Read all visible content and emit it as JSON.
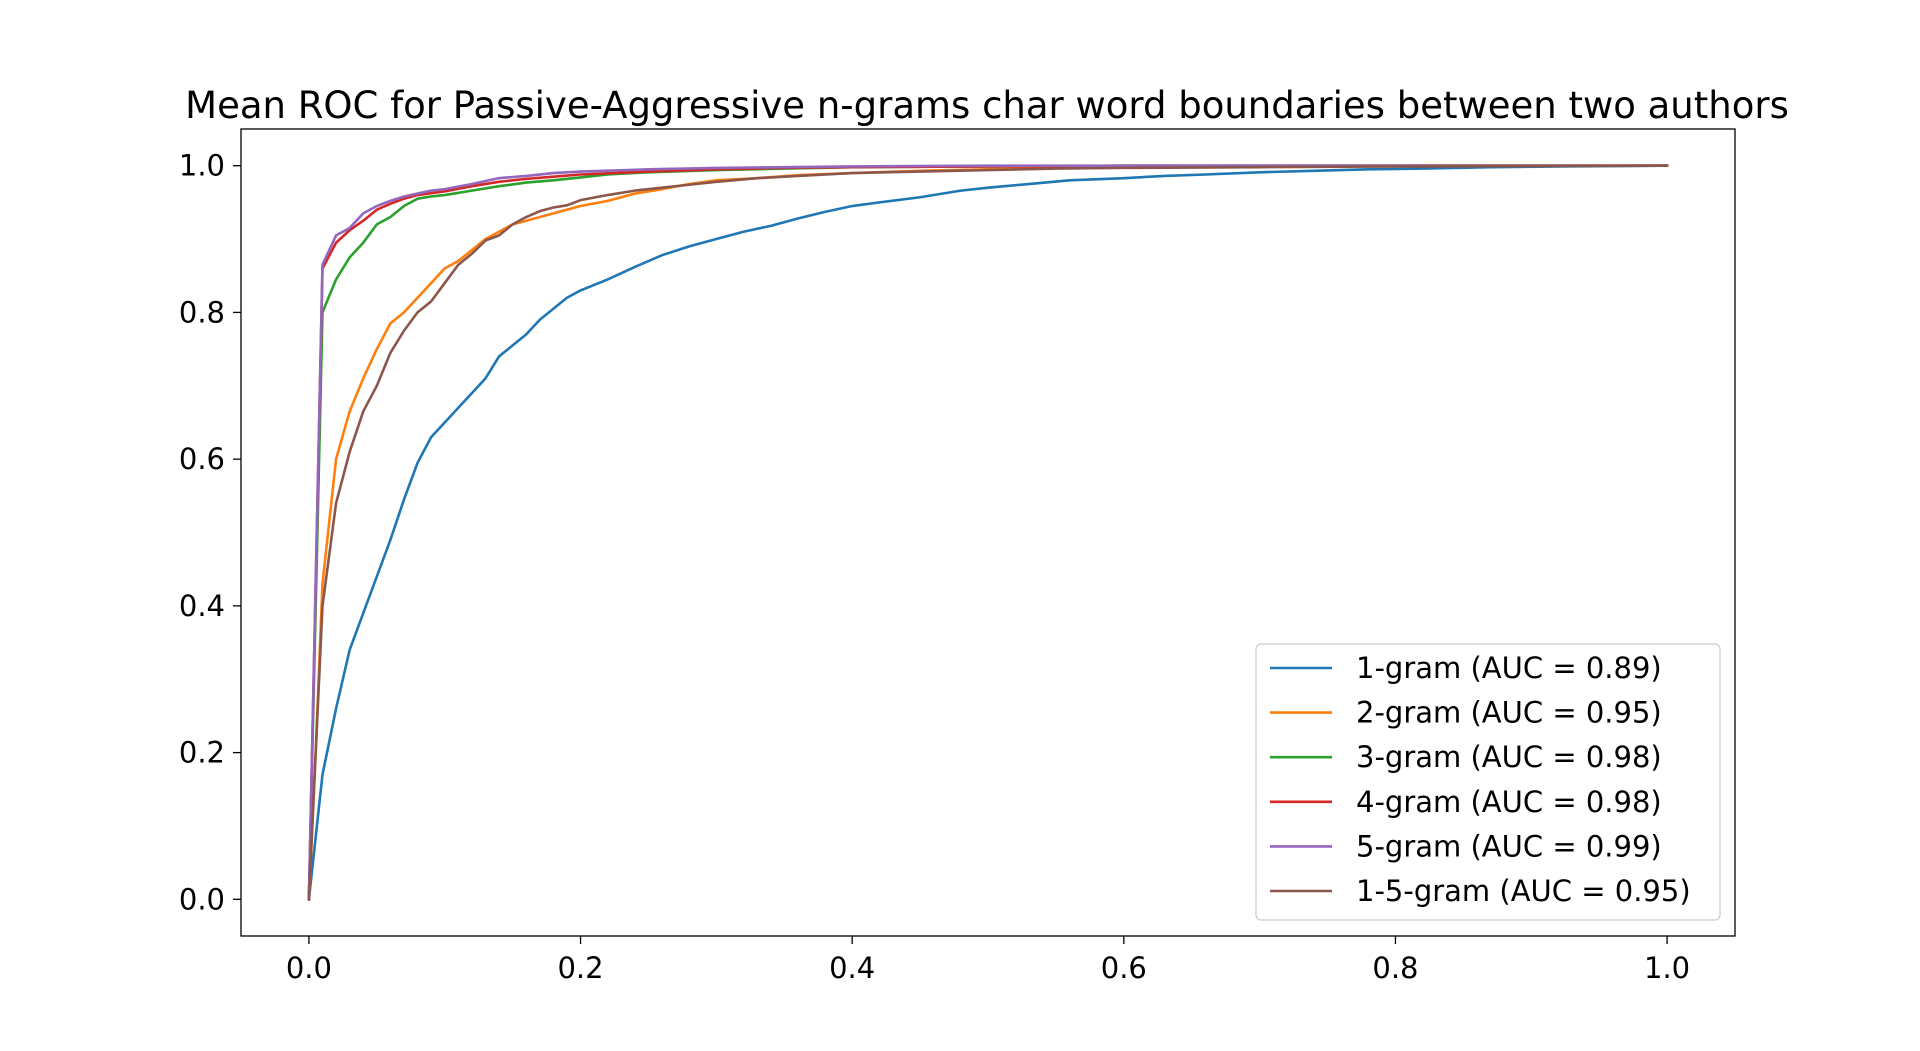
{
  "chart_data": {
    "type": "line",
    "title": "Mean ROC for Passive-Aggressive n-grams char word boundaries between two authors",
    "xlabel": "",
    "ylabel": "",
    "xlim": [
      -0.05,
      1.05
    ],
    "ylim": [
      -0.05,
      1.05
    ],
    "xticks": [
      "0.0",
      "0.2",
      "0.4",
      "0.6",
      "0.8",
      "1.0"
    ],
    "yticks": [
      "0.0",
      "0.2",
      "0.4",
      "0.6",
      "0.8",
      "1.0"
    ],
    "grid": false,
    "legend_position": "lower-right",
    "series": [
      {
        "name": "1-gram (AUC = 0.89)",
        "color": "#1f77b4",
        "points": [
          [
            0,
            0
          ],
          [
            0.01,
            0.17
          ],
          [
            0.02,
            0.26
          ],
          [
            0.03,
            0.34
          ],
          [
            0.04,
            0.39
          ],
          [
            0.05,
            0.44
          ],
          [
            0.06,
            0.49
          ],
          [
            0.07,
            0.545
          ],
          [
            0.08,
            0.595
          ],
          [
            0.09,
            0.63
          ],
          [
            0.1,
            0.65
          ],
          [
            0.11,
            0.67
          ],
          [
            0.12,
            0.69
          ],
          [
            0.13,
            0.71
          ],
          [
            0.14,
            0.74
          ],
          [
            0.15,
            0.755
          ],
          [
            0.16,
            0.77
          ],
          [
            0.17,
            0.79
          ],
          [
            0.18,
            0.805
          ],
          [
            0.19,
            0.82
          ],
          [
            0.2,
            0.83
          ],
          [
            0.22,
            0.845
          ],
          [
            0.24,
            0.862
          ],
          [
            0.26,
            0.878
          ],
          [
            0.28,
            0.89
          ],
          [
            0.3,
            0.9
          ],
          [
            0.32,
            0.91
          ],
          [
            0.34,
            0.918
          ],
          [
            0.36,
            0.928
          ],
          [
            0.38,
            0.937
          ],
          [
            0.4,
            0.945
          ],
          [
            0.42,
            0.95
          ],
          [
            0.45,
            0.957
          ],
          [
            0.48,
            0.966
          ],
          [
            0.5,
            0.97
          ],
          [
            0.53,
            0.975
          ],
          [
            0.56,
            0.98
          ],
          [
            0.6,
            0.983
          ],
          [
            0.63,
            0.986
          ],
          [
            0.66,
            0.988
          ],
          [
            0.7,
            0.991
          ],
          [
            0.74,
            0.993
          ],
          [
            0.78,
            0.995
          ],
          [
            0.82,
            0.996
          ],
          [
            0.87,
            0.998
          ],
          [
            0.92,
            0.999
          ],
          [
            1.0,
            1.0
          ]
        ]
      },
      {
        "name": "2-gram (AUC = 0.95)",
        "color": "#ff7f0e",
        "points": [
          [
            0,
            0
          ],
          [
            0.005,
            0.2
          ],
          [
            0.01,
            0.43
          ],
          [
            0.02,
            0.6
          ],
          [
            0.03,
            0.665
          ],
          [
            0.04,
            0.71
          ],
          [
            0.05,
            0.75
          ],
          [
            0.06,
            0.785
          ],
          [
            0.07,
            0.8
          ],
          [
            0.08,
            0.82
          ],
          [
            0.09,
            0.84
          ],
          [
            0.1,
            0.86
          ],
          [
            0.11,
            0.87
          ],
          [
            0.12,
            0.885
          ],
          [
            0.13,
            0.9
          ],
          [
            0.14,
            0.91
          ],
          [
            0.15,
            0.92
          ],
          [
            0.16,
            0.925
          ],
          [
            0.18,
            0.935
          ],
          [
            0.2,
            0.945
          ],
          [
            0.22,
            0.952
          ],
          [
            0.24,
            0.962
          ],
          [
            0.26,
            0.968
          ],
          [
            0.28,
            0.975
          ],
          [
            0.3,
            0.98
          ],
          [
            0.33,
            0.983
          ],
          [
            0.36,
            0.987
          ],
          [
            0.4,
            0.99
          ],
          [
            0.45,
            0.993
          ],
          [
            0.5,
            0.995
          ],
          [
            0.55,
            0.997
          ],
          [
            0.6,
            0.998
          ],
          [
            0.7,
            0.999
          ],
          [
            0.8,
            1.0
          ],
          [
            1.0,
            1.0
          ]
        ]
      },
      {
        "name": "3-gram (AUC = 0.98)",
        "color": "#2ca02c",
        "points": [
          [
            0,
            0
          ],
          [
            0.01,
            0.8
          ],
          [
            0.02,
            0.845
          ],
          [
            0.03,
            0.875
          ],
          [
            0.04,
            0.895
          ],
          [
            0.05,
            0.92
          ],
          [
            0.06,
            0.93
          ],
          [
            0.07,
            0.945
          ],
          [
            0.08,
            0.955
          ],
          [
            0.09,
            0.958
          ],
          [
            0.1,
            0.96
          ],
          [
            0.12,
            0.966
          ],
          [
            0.14,
            0.972
          ],
          [
            0.16,
            0.977
          ],
          [
            0.18,
            0.98
          ],
          [
            0.2,
            0.984
          ],
          [
            0.22,
            0.988
          ],
          [
            0.25,
            0.991
          ],
          [
            0.3,
            0.994
          ],
          [
            0.35,
            0.996
          ],
          [
            0.4,
            0.998
          ],
          [
            0.5,
            0.999
          ],
          [
            0.6,
            1.0
          ],
          [
            1.0,
            1.0
          ]
        ]
      },
      {
        "name": "4-gram (AUC = 0.98)",
        "color": "#d62728",
        "points": [
          [
            0,
            0
          ],
          [
            0.01,
            0.86
          ],
          [
            0.02,
            0.895
          ],
          [
            0.03,
            0.912
          ],
          [
            0.04,
            0.925
          ],
          [
            0.05,
            0.94
          ],
          [
            0.06,
            0.948
          ],
          [
            0.07,
            0.955
          ],
          [
            0.08,
            0.96
          ],
          [
            0.1,
            0.965
          ],
          [
            0.12,
            0.972
          ],
          [
            0.14,
            0.978
          ],
          [
            0.16,
            0.982
          ],
          [
            0.18,
            0.985
          ],
          [
            0.2,
            0.988
          ],
          [
            0.25,
            0.992
          ],
          [
            0.3,
            0.995
          ],
          [
            0.35,
            0.997
          ],
          [
            0.4,
            0.998
          ],
          [
            0.5,
            0.999
          ],
          [
            0.6,
            1.0
          ],
          [
            1.0,
            1.0
          ]
        ]
      },
      {
        "name": "5-gram (AUC = 0.99)",
        "color": "#9467bd",
        "points": [
          [
            0,
            0
          ],
          [
            0.01,
            0.865
          ],
          [
            0.02,
            0.905
          ],
          [
            0.03,
            0.915
          ],
          [
            0.04,
            0.935
          ],
          [
            0.05,
            0.945
          ],
          [
            0.06,
            0.952
          ],
          [
            0.07,
            0.958
          ],
          [
            0.08,
            0.962
          ],
          [
            0.09,
            0.966
          ],
          [
            0.1,
            0.968
          ],
          [
            0.12,
            0.975
          ],
          [
            0.14,
            0.983
          ],
          [
            0.16,
            0.986
          ],
          [
            0.18,
            0.99
          ],
          [
            0.2,
            0.992
          ],
          [
            0.25,
            0.995
          ],
          [
            0.3,
            0.997
          ],
          [
            0.4,
            0.999
          ],
          [
            0.5,
            1.0
          ],
          [
            1.0,
            1.0
          ]
        ]
      },
      {
        "name": "1-5-gram (AUC = 0.95)",
        "color": "#8c564b",
        "points": [
          [
            0,
            0
          ],
          [
            0.01,
            0.4
          ],
          [
            0.02,
            0.54
          ],
          [
            0.03,
            0.61
          ],
          [
            0.04,
            0.665
          ],
          [
            0.05,
            0.7
          ],
          [
            0.06,
            0.745
          ],
          [
            0.07,
            0.775
          ],
          [
            0.08,
            0.8
          ],
          [
            0.09,
            0.815
          ],
          [
            0.1,
            0.84
          ],
          [
            0.11,
            0.865
          ],
          [
            0.12,
            0.88
          ],
          [
            0.13,
            0.898
          ],
          [
            0.14,
            0.905
          ],
          [
            0.15,
            0.92
          ],
          [
            0.16,
            0.93
          ],
          [
            0.17,
            0.938
          ],
          [
            0.18,
            0.943
          ],
          [
            0.19,
            0.946
          ],
          [
            0.2,
            0.953
          ],
          [
            0.22,
            0.96
          ],
          [
            0.24,
            0.966
          ],
          [
            0.26,
            0.97
          ],
          [
            0.28,
            0.974
          ],
          [
            0.3,
            0.978
          ],
          [
            0.33,
            0.983
          ],
          [
            0.36,
            0.986
          ],
          [
            0.4,
            0.99
          ],
          [
            0.45,
            0.992
          ],
          [
            0.5,
            0.994
          ],
          [
            0.55,
            0.996
          ],
          [
            0.6,
            0.997
          ],
          [
            0.7,
            0.998
          ],
          [
            0.8,
            0.999
          ],
          [
            1.0,
            1.0
          ]
        ]
      }
    ]
  }
}
